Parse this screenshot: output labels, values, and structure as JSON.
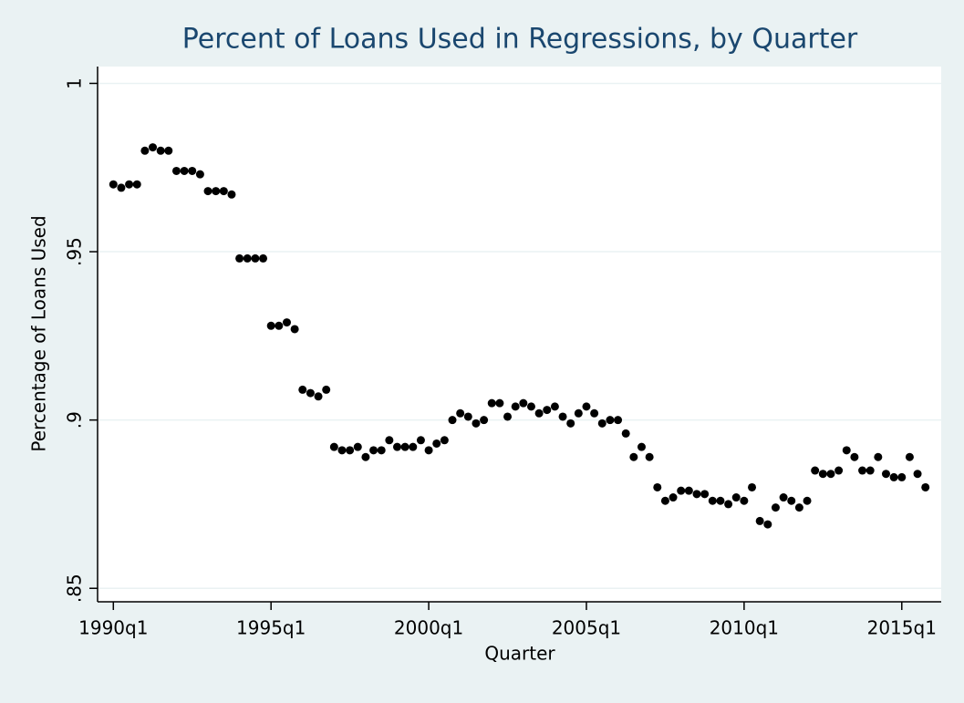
{
  "chart_data": {
    "type": "scatter",
    "title": "Percent of Loans Used in Regressions, by Quarter",
    "x_label": "Quarter",
    "y_label": "Percentage of Loans Used",
    "color": "#000000",
    "grid": true,
    "x": [
      "1990q1",
      "1990q2",
      "1990q3",
      "1990q4",
      "1991q1",
      "1991q2",
      "1991q3",
      "1991q4",
      "1992q1",
      "1992q2",
      "1992q3",
      "1992q4",
      "1993q1",
      "1993q2",
      "1993q3",
      "1993q4",
      "1994q1",
      "1994q2",
      "1994q3",
      "1994q4",
      "1995q1",
      "1995q2",
      "1995q3",
      "1995q4",
      "1996q1",
      "1996q2",
      "1996q3",
      "1996q4",
      "1997q1",
      "1997q2",
      "1997q3",
      "1997q4",
      "1998q1",
      "1998q2",
      "1998q3",
      "1998q4",
      "1999q1",
      "1999q2",
      "1999q3",
      "1999q4",
      "2000q1",
      "2000q2",
      "2000q3",
      "2000q4",
      "2001q1",
      "2001q2",
      "2001q3",
      "2001q4",
      "2002q1",
      "2002q2",
      "2002q3",
      "2002q4",
      "2003q1",
      "2003q2",
      "2003q3",
      "2003q4",
      "2004q1",
      "2004q2",
      "2004q3",
      "2004q4",
      "2005q1",
      "2005q2",
      "2005q3",
      "2005q4",
      "2006q1",
      "2006q2",
      "2006q3",
      "2006q4",
      "2007q1",
      "2007q2",
      "2007q3",
      "2007q4",
      "2008q1",
      "2008q2",
      "2008q3",
      "2008q4",
      "2009q1",
      "2009q2",
      "2009q3",
      "2009q4",
      "2010q1",
      "2010q2",
      "2010q3",
      "2010q4",
      "2011q1",
      "2011q2",
      "2011q3",
      "2011q4",
      "2012q1",
      "2012q2",
      "2012q3",
      "2012q4",
      "2013q1",
      "2013q2",
      "2013q3",
      "2013q4",
      "2014q1",
      "2014q2",
      "2014q3",
      "2014q4",
      "2015q1",
      "2015q2",
      "2015q3",
      "2015q4"
    ],
    "values": [
      0.97,
      0.969,
      0.97,
      0.97,
      0.98,
      0.981,
      0.98,
      0.98,
      0.974,
      0.974,
      0.974,
      0.973,
      0.968,
      0.968,
      0.968,
      0.967,
      0.948,
      0.948,
      0.948,
      0.948,
      0.928,
      0.928,
      0.929,
      0.927,
      0.909,
      0.908,
      0.907,
      0.909,
      0.892,
      0.891,
      0.891,
      0.892,
      0.889,
      0.891,
      0.891,
      0.894,
      0.892,
      0.892,
      0.892,
      0.894,
      0.891,
      0.893,
      0.894,
      0.9,
      0.902,
      0.901,
      0.899,
      0.9,
      0.905,
      0.905,
      0.901,
      0.904,
      0.905,
      0.904,
      0.902,
      0.903,
      0.904,
      0.901,
      0.899,
      0.902,
      0.904,
      0.902,
      0.899,
      0.9,
      0.9,
      0.896,
      0.889,
      0.892,
      0.889,
      0.88,
      0.876,
      0.877,
      0.879,
      0.879,
      0.878,
      0.878,
      0.876,
      0.876,
      0.875,
      0.877,
      0.876,
      0.88,
      0.87,
      0.869,
      0.874,
      0.877,
      0.876,
      0.874,
      0.876,
      0.885,
      0.884,
      0.884,
      0.885,
      0.891,
      0.889,
      0.885,
      0.885,
      0.889,
      0.884,
      0.883,
      0.883,
      0.889,
      0.884,
      0.88
    ],
    "xlim": [
      "1989q3",
      "2016q2"
    ],
    "xticks": [
      "1990q1",
      "1995q1",
      "2000q1",
      "2005q1",
      "2010q1",
      "2015q1"
    ],
    "ylim": [
      0.846,
      1.005
    ],
    "yticks": [
      {
        "value": 0.85,
        "label": ".85"
      },
      {
        "value": 0.9,
        "label": ".9"
      },
      {
        "value": 0.95,
        "label": ".95"
      },
      1
    ]
  }
}
